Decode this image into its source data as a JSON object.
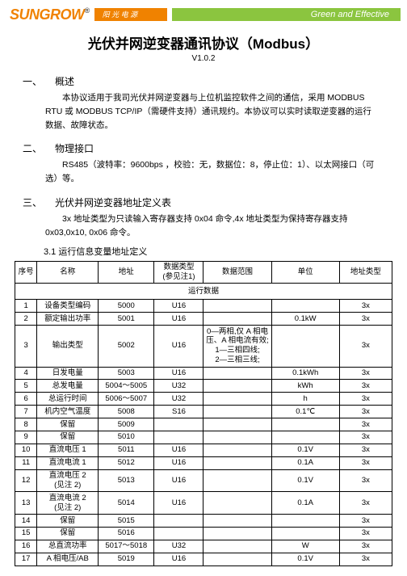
{
  "header": {
    "logo_text": "SUNGROW",
    "reg": "®",
    "tagline_cn": "阳 光 电 源",
    "tagline_en": "Green and Effective"
  },
  "title": "光伏并网逆变器通讯协议（Modbus）",
  "version": "V1.0.2",
  "sections": {
    "s1": {
      "num": "一、",
      "title": "概述",
      "para": "本协议适用于我司光伏并网逆变器与上位机监控软件之间的通信，采用 MODBUS RTU 或 MODBUS TCP/IP（需硬件支持）通讯规约。本协议可以实时读取逆变器的运行数据、故障状态。"
    },
    "s2": {
      "num": "二、",
      "title": "物理接口",
      "para": "RS485（波特率：9600bps ，校验：无，数据位：8，停止位：1）、以太网接口（可选）等。"
    },
    "s3": {
      "num": "三、",
      "title": "光伏并网逆变器地址定义表",
      "para": "3x 地址类型为只读输入寄存器支持 0x04 命令,4x 地址类型为保持寄存器支持 0x03,0x10, 0x06 命令。",
      "sub": "3.1 运行信息变量地址定义"
    }
  },
  "table": {
    "headers": {
      "seq": "序号",
      "name": "名称",
      "addr": "地址",
      "dtype": "数据类型\n(参见注1)",
      "range": "数据范围",
      "unit": "单位",
      "atype": "地址类型"
    },
    "group_title": "运行数据",
    "rows": [
      {
        "seq": "1",
        "name": "设备类型编码",
        "addr": "5000",
        "dtype": "U16",
        "range": "",
        "unit": "",
        "atype": "3x"
      },
      {
        "seq": "2",
        "name": "额定输出功率",
        "addr": "5001",
        "dtype": "U16",
        "range": "",
        "unit": "0.1kW",
        "atype": "3x"
      },
      {
        "seq": "3",
        "name": "输出类型",
        "addr": "5002",
        "dtype": "U16",
        "range": "0—两相,仅 A 相电压、A 相电流有效;\n1—三相四线;\n2—三相三线;",
        "unit": "",
        "atype": "3x"
      },
      {
        "seq": "4",
        "name": "日发电量",
        "addr": "5003",
        "dtype": "U16",
        "range": "",
        "unit": "0.1kWh",
        "atype": "3x"
      },
      {
        "seq": "5",
        "name": "总发电量",
        "addr": "5004～5005",
        "dtype": "U32",
        "range": "",
        "unit": "kWh",
        "atype": "3x"
      },
      {
        "seq": "6",
        "name": "总运行时间",
        "addr": "5006～5007",
        "dtype": "U32",
        "range": "",
        "unit": "h",
        "atype": "3x"
      },
      {
        "seq": "7",
        "name": "机内空气温度",
        "addr": "5008",
        "dtype": "S16",
        "range": "",
        "unit": "0.1℃",
        "atype": "3x"
      },
      {
        "seq": "8",
        "name": "保留",
        "addr": "5009",
        "dtype": "",
        "range": "",
        "unit": "",
        "atype": "3x"
      },
      {
        "seq": "9",
        "name": "保留",
        "addr": "5010",
        "dtype": "",
        "range": "",
        "unit": "",
        "atype": "3x"
      },
      {
        "seq": "10",
        "name": "直流电压 1",
        "addr": "5011",
        "dtype": "U16",
        "range": "",
        "unit": "0.1V",
        "atype": "3x"
      },
      {
        "seq": "11",
        "name": "直流电流 1",
        "addr": "5012",
        "dtype": "U16",
        "range": "",
        "unit": "0.1A",
        "atype": "3x"
      },
      {
        "seq": "12",
        "name": "直流电压 2\n(见注 2)",
        "addr": "5013",
        "dtype": "U16",
        "range": "",
        "unit": "0.1V",
        "atype": "3x"
      },
      {
        "seq": "13",
        "name": "直流电流 2\n(见注 2)",
        "addr": "5014",
        "dtype": "U16",
        "range": "",
        "unit": "0.1A",
        "atype": "3x"
      },
      {
        "seq": "14",
        "name": "保留",
        "addr": "5015",
        "dtype": "",
        "range": "",
        "unit": "",
        "atype": "3x"
      },
      {
        "seq": "15",
        "name": "保留",
        "addr": "5016",
        "dtype": "",
        "range": "",
        "unit": "",
        "atype": "3x"
      },
      {
        "seq": "16",
        "name": "总直流功率",
        "addr": "5017～5018",
        "dtype": "U32",
        "range": "",
        "unit": "W",
        "atype": "3x"
      },
      {
        "seq": "17",
        "name": "A 相电压/AB",
        "addr": "5019",
        "dtype": "U16",
        "range": "",
        "unit": "0.1V",
        "atype": "3x"
      }
    ]
  }
}
